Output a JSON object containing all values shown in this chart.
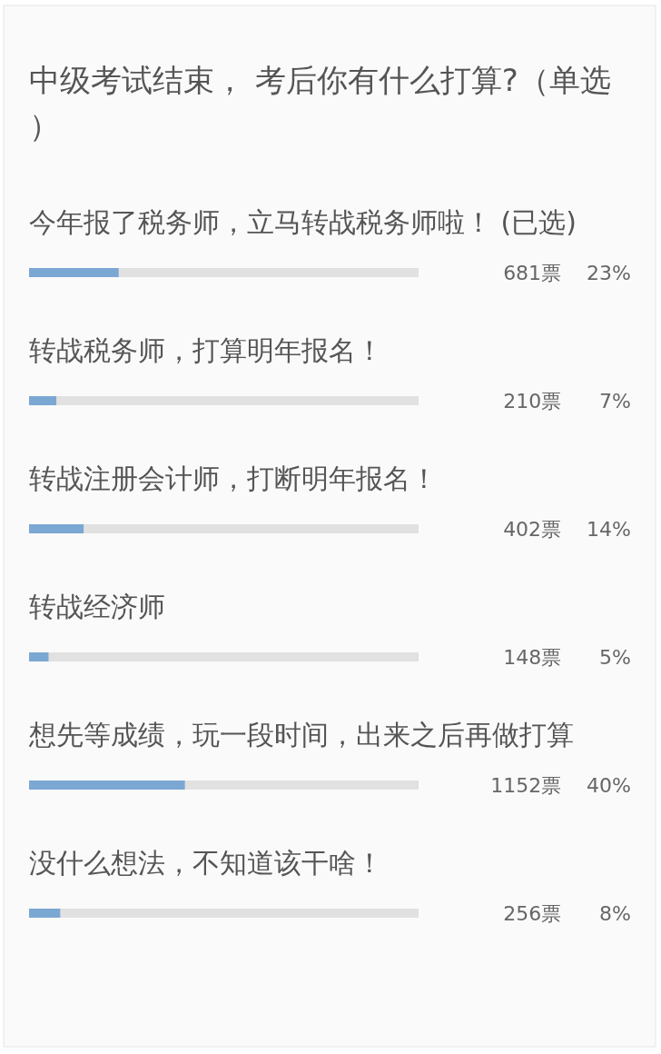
{
  "chart_data": {
    "type": "bar",
    "orientation": "horizontal",
    "title": "中级考试结束， 考后你有什么打算?（单选）",
    "categories": [
      "今年报了税务师，立马转战税务师啦！ (已选)",
      "转战税务师，打算明年报名！",
      "转战注册会计师，打断明年报名！",
      "转战经济师",
      "想先等成绩，玩一段时间，出来之后再做打算",
      "没什么想法，不知道该干啥！"
    ],
    "series": [
      {
        "color": "#7ba7d3",
        "values": [
          23,
          7,
          14,
          5,
          40,
          8
        ],
        "value_labels": [
          "681票    23%",
          "210票      7%",
          "402票    14%",
          "148票      5%",
          "1152票    40%",
          "256票      8%"
        ]
      }
    ],
    "xlim": [
      0,
      100
    ],
    "tick_labels": false
  }
}
